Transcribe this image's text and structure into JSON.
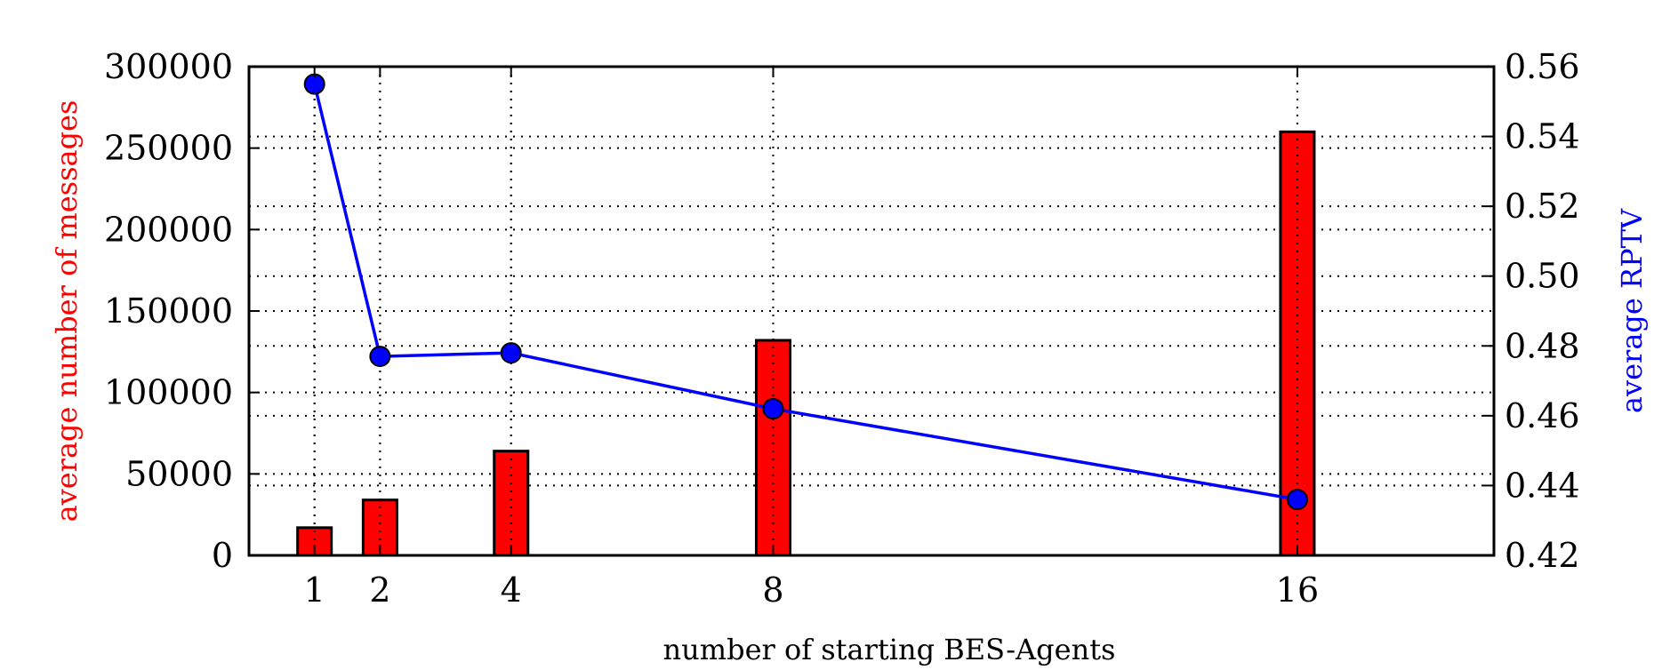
{
  "chart_data": {
    "type": "bar",
    "xlabel": "number of starting BES-Agents",
    "ylabel_left": "average number of messages",
    "ylabel_right": "average RPTV",
    "x": [
      1,
      2,
      4,
      8,
      16
    ],
    "x_tick_labels": [
      "1",
      "2",
      "4",
      "8",
      "16"
    ],
    "xlim": [
      -0.0,
      19.0
    ],
    "ylim_left": [
      0,
      300000
    ],
    "left_ticks": [
      0,
      50000,
      100000,
      150000,
      200000,
      250000,
      300000
    ],
    "left_tick_labels": [
      "0",
      "50000",
      "100000",
      "150000",
      "200000",
      "250000",
      "300000"
    ],
    "ylim_right": [
      0.42,
      0.56
    ],
    "right_ticks": [
      0.42,
      0.44,
      0.46,
      0.48,
      0.5,
      0.52,
      0.54,
      0.56
    ],
    "right_tick_labels": [
      "0.42",
      "0.44",
      "0.46",
      "0.48",
      "0.50",
      "0.52",
      "0.54",
      "0.56"
    ],
    "grid": true,
    "series": [
      {
        "axis": "left",
        "type": "bar",
        "color": "#ff0000",
        "values": [
          17000,
          34000,
          64000,
          132000,
          260000
        ]
      },
      {
        "axis": "right",
        "type": "line",
        "color": "#0000ff",
        "marker_color": "#0000ff",
        "values": [
          0.555,
          0.477,
          0.478,
          0.462,
          0.436
        ]
      }
    ]
  },
  "colors": {
    "left_label": "#ff0000",
    "right_label": "#0000ff",
    "axis": "#000000"
  }
}
